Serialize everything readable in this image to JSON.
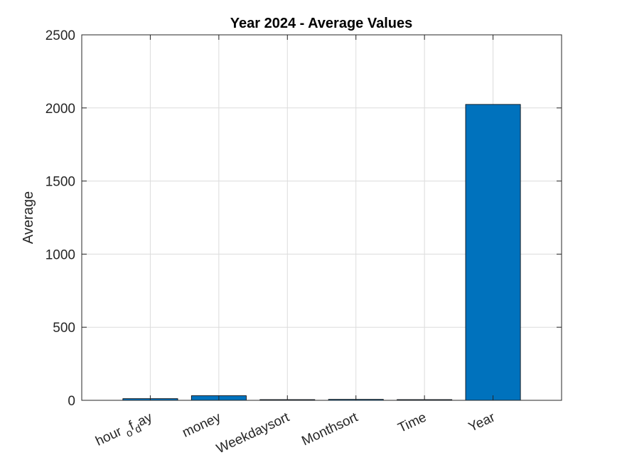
{
  "chart_data": {
    "type": "bar",
    "title": "Year 2024 - Average Values",
    "xlabel": "",
    "ylabel": "Average",
    "categories": [
      "hour_of_day",
      "money",
      "Weekdaysort",
      "Monthsort",
      "Time",
      "Year"
    ],
    "values": [
      11.5,
      31.6,
      3.9,
      6.5,
      0.5,
      2024
    ],
    "ylim": [
      0,
      2500
    ],
    "yticks": [
      0,
      500,
      1000,
      1500,
      2000,
      2500
    ],
    "ytick_labels": [
      "0",
      "500",
      "1000",
      "1500",
      "2000",
      "2500"
    ],
    "grid": true,
    "legend": "none",
    "bar_color": "#0072BD",
    "bar_edge_color": "#000000",
    "grid_color": "#dcdcdc",
    "axis_color": "#262626"
  }
}
